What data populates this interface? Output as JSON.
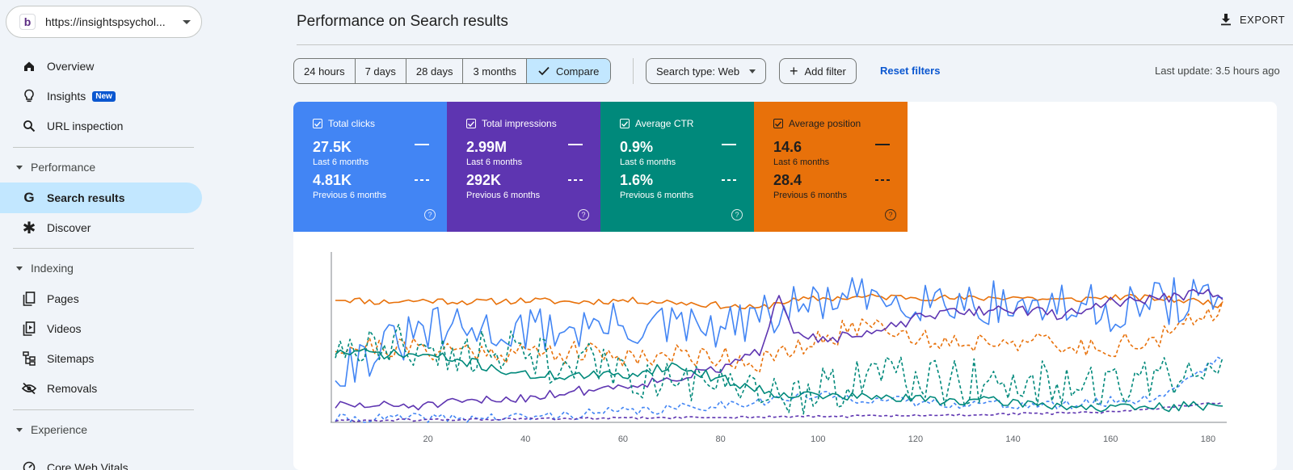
{
  "property": {
    "url": "https://insightspsychol...",
    "logo_letter": "b"
  },
  "sidebar": {
    "overview": "Overview",
    "insights": "Insights",
    "insights_badge": "New",
    "url_inspection": "URL inspection",
    "performance_section": "Performance",
    "search_results": "Search results",
    "discover": "Discover",
    "indexing_section": "Indexing",
    "pages": "Pages",
    "videos": "Videos",
    "sitemaps": "Sitemaps",
    "removals": "Removals",
    "experience_section": "Experience",
    "core_web_vitals": "Core Web Vitals"
  },
  "header": {
    "title": "Performance on Search results",
    "export": "EXPORT"
  },
  "filters": {
    "ranges": [
      "24 hours",
      "7 days",
      "28 days",
      "3 months"
    ],
    "compare": "Compare",
    "search_type": "Search type: Web",
    "add_filter": "Add filter",
    "reset": "Reset filters",
    "last_update": "Last update: 3.5 hours ago"
  },
  "metrics": [
    {
      "name": "Total clicks",
      "current": "27.5K",
      "current_label": "Last 6 months",
      "previous": "4.81K",
      "previous_label": "Previous 6 months",
      "color": "#4285f4"
    },
    {
      "name": "Total impressions",
      "current": "2.99M",
      "current_label": "Last 6 months",
      "previous": "292K",
      "previous_label": "Previous 6 months",
      "color": "#5e35b1"
    },
    {
      "name": "Average CTR",
      "current": "0.9%",
      "current_label": "Last 6 months",
      "previous": "1.6%",
      "previous_label": "Previous 6 months",
      "color": "#00897b"
    },
    {
      "name": "Average position",
      "current": "14.6",
      "current_label": "Last 6 months",
      "previous": "28.4",
      "previous_label": "Previous 6 months",
      "color": "#e8710a"
    }
  ],
  "chart_data": {
    "type": "line",
    "x_ticks": [
      20,
      40,
      60,
      80,
      100,
      120,
      140,
      160,
      180
    ],
    "xlim": [
      1,
      183
    ],
    "ylim": [
      0,
      100
    ],
    "grid": false,
    "series": [
      {
        "color": "#e8710a",
        "style": "solid",
        "anchors": [
          [
            1,
            74
          ],
          [
            10,
            72
          ],
          [
            20,
            73
          ],
          [
            30,
            72
          ],
          [
            40,
            73
          ],
          [
            50,
            72
          ],
          [
            60,
            73
          ],
          [
            70,
            72
          ],
          [
            80,
            70
          ],
          [
            88,
            68
          ],
          [
            92,
            72
          ],
          [
            100,
            74
          ],
          [
            110,
            75
          ],
          [
            120,
            75
          ],
          [
            130,
            74
          ],
          [
            140,
            75
          ],
          [
            150,
            73
          ],
          [
            160,
            75
          ],
          [
            170,
            74
          ],
          [
            180,
            72
          ],
          [
            183,
            70
          ]
        ],
        "noise": 2,
        "seed": 11
      },
      {
        "color": "#e8710a",
        "style": "dashed",
        "anchors": [
          [
            1,
            46
          ],
          [
            10,
            45
          ],
          [
            20,
            44
          ],
          [
            30,
            43
          ],
          [
            40,
            42
          ],
          [
            50,
            42
          ],
          [
            60,
            40
          ],
          [
            70,
            40
          ],
          [
            80,
            40
          ],
          [
            88,
            36
          ],
          [
            95,
            42
          ],
          [
            100,
            48
          ],
          [
            110,
            60
          ],
          [
            115,
            58
          ],
          [
            120,
            50
          ],
          [
            130,
            48
          ],
          [
            140,
            50
          ],
          [
            150,
            44
          ],
          [
            160,
            46
          ],
          [
            170,
            50
          ],
          [
            180,
            64
          ],
          [
            183,
            70
          ]
        ],
        "noise": 7,
        "seed": 21
      },
      {
        "color": "#4285f4",
        "style": "solid",
        "anchors": [
          [
            1,
            32
          ],
          [
            20,
            55
          ],
          [
            40,
            55
          ],
          [
            60,
            58
          ],
          [
            80,
            55
          ],
          [
            100,
            72
          ],
          [
            120,
            75
          ],
          [
            140,
            70
          ],
          [
            160,
            68
          ],
          [
            180,
            75
          ],
          [
            183,
            78
          ]
        ],
        "noise": 14,
        "seed": 31
      },
      {
        "color": "#4285f4",
        "style": "dashed",
        "anchors": [
          [
            1,
            2
          ],
          [
            40,
            3
          ],
          [
            70,
            8
          ],
          [
            100,
            16
          ],
          [
            120,
            12
          ],
          [
            150,
            10
          ],
          [
            170,
            15
          ],
          [
            183,
            40
          ]
        ],
        "noise": 3,
        "seed": 41
      },
      {
        "color": "#5e35b1",
        "style": "solid",
        "anchors": [
          [
            1,
            10
          ],
          [
            20,
            10
          ],
          [
            40,
            15
          ],
          [
            60,
            22
          ],
          [
            70,
            26
          ],
          [
            80,
            32
          ],
          [
            88,
            42
          ],
          [
            92,
            78
          ],
          [
            95,
            56
          ],
          [
            100,
            50
          ],
          [
            110,
            52
          ],
          [
            120,
            62
          ],
          [
            128,
            66
          ],
          [
            140,
            68
          ],
          [
            150,
            64
          ],
          [
            160,
            72
          ],
          [
            170,
            74
          ],
          [
            180,
            78
          ],
          [
            183,
            72
          ]
        ],
        "noise": 3,
        "seed": 51
      },
      {
        "color": "#5e35b1",
        "style": "dashed",
        "anchors": [
          [
            1,
            1
          ],
          [
            40,
            2
          ],
          [
            80,
            3
          ],
          [
            120,
            4
          ],
          [
            160,
            6
          ],
          [
            183,
            12
          ]
        ],
        "noise": 0.7,
        "seed": 61
      },
      {
        "color": "#00897b",
        "style": "solid",
        "anchors": [
          [
            1,
            42
          ],
          [
            20,
            40
          ],
          [
            30,
            35
          ],
          [
            40,
            28
          ],
          [
            60,
            28
          ],
          [
            70,
            34
          ],
          [
            80,
            26
          ],
          [
            90,
            18
          ],
          [
            100,
            16
          ],
          [
            120,
            14
          ],
          [
            140,
            12
          ],
          [
            160,
            8
          ],
          [
            180,
            10
          ],
          [
            183,
            12
          ]
        ],
        "noise": 3,
        "seed": 71
      },
      {
        "color": "#00897b",
        "style": "dashed",
        "anchors": [
          [
            1,
            45
          ],
          [
            20,
            45
          ],
          [
            40,
            40
          ],
          [
            60,
            30
          ],
          [
            80,
            18
          ],
          [
            100,
            18
          ],
          [
            110,
            30
          ],
          [
            120,
            24
          ],
          [
            140,
            24
          ],
          [
            160,
            20
          ],
          [
            175,
            28
          ],
          [
            183,
            30
          ]
        ],
        "noise": 14,
        "seed": 81
      }
    ]
  }
}
